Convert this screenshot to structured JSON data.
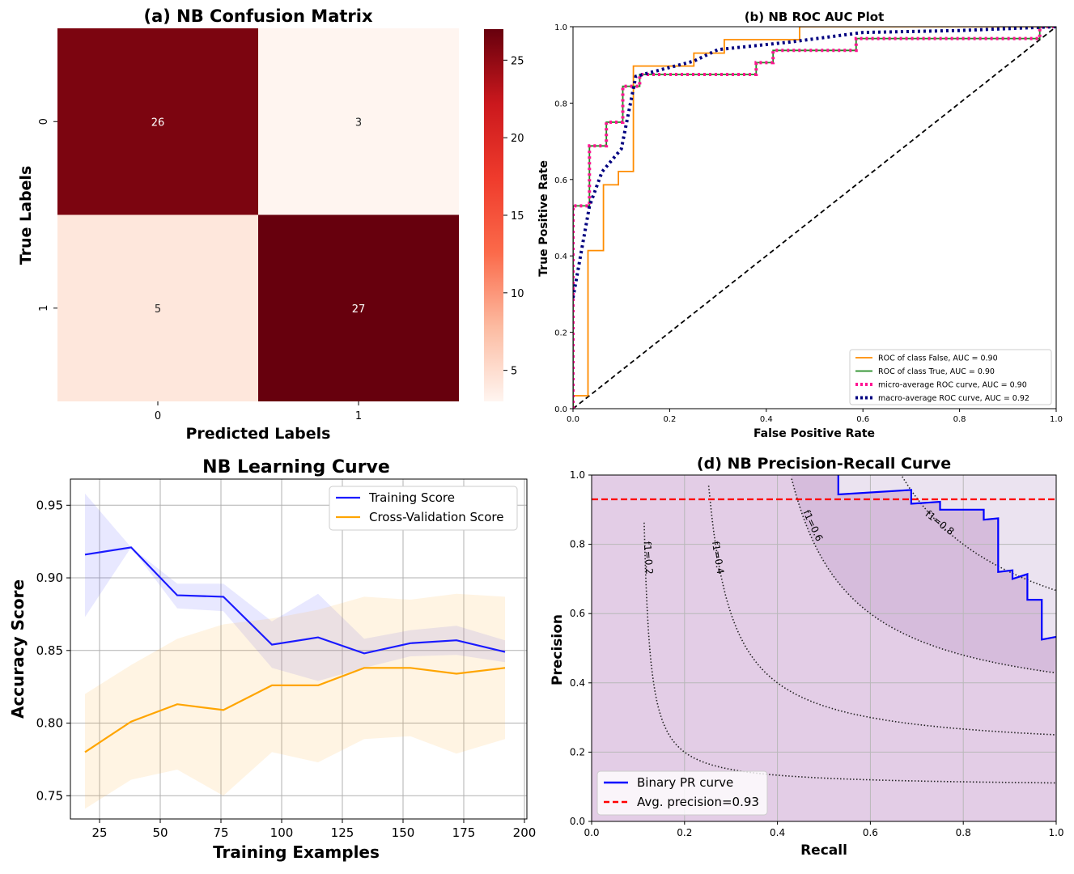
{
  "chart_data": [
    {
      "type": "heatmap",
      "title": "(a) NB Confusion Matrix",
      "xlabel": "Predicted Labels",
      "ylabel": "True Labels",
      "x_ticks": [
        "0",
        "1"
      ],
      "y_ticks": [
        "0",
        "1"
      ],
      "values": [
        [
          26,
          3
        ],
        [
          5,
          27
        ]
      ],
      "colorbar": {
        "ticks": [
          "5",
          "10",
          "15",
          "20",
          "25"
        ],
        "range": [
          3,
          27
        ],
        "colormap": "Reds"
      }
    },
    {
      "type": "line",
      "title": "(b) NB ROC AUC Plot",
      "xlabel": "False Positive Rate",
      "ylabel": "True Positive Rate",
      "xlim": [
        0,
        1
      ],
      "ylim": [
        0,
        1
      ],
      "x_ticks": [
        "0.0",
        "0.2",
        "0.4",
        "0.6",
        "0.8",
        "1.0"
      ],
      "y_ticks": [
        "0.0",
        "0.2",
        "0.4",
        "0.6",
        "0.8",
        "1.0"
      ],
      "legend_position": "lower-right",
      "series": [
        {
          "name": "ROC of class False, AUC = 0.90",
          "color": "#ff8c00",
          "style": "solid",
          "x": [
            0,
            0,
            0.031,
            0.031,
            0.063,
            0.063,
            0.094,
            0.094,
            0.125,
            0.125,
            0.25,
            0.25,
            0.313,
            0.313,
            0.469,
            0.469,
            0.969,
            0.969,
            1
          ],
          "y": [
            0,
            0.034,
            0.034,
            0.414,
            0.414,
            0.586,
            0.586,
            0.621,
            0.621,
            0.897,
            0.897,
            0.931,
            0.931,
            0.966,
            0.966,
            1,
            1,
            1,
            1
          ]
        },
        {
          "name": "ROC of class True, AUC = 0.90",
          "color": "#228b22",
          "style": "solid",
          "x": [
            0,
            0,
            0.034,
            0.034,
            0.069,
            0.069,
            0.103,
            0.103,
            0.138,
            0.138,
            0.379,
            0.379,
            0.414,
            0.414,
            0.586,
            0.586,
            0.966,
            0.966,
            1
          ],
          "y": [
            0,
            0.531,
            0.531,
            0.688,
            0.688,
            0.75,
            0.75,
            0.844,
            0.844,
            0.875,
            0.875,
            0.906,
            0.906,
            0.938,
            0.938,
            0.969,
            0.969,
            1,
            1
          ]
        },
        {
          "name": "micro-average ROC curve, AUC = 0.90",
          "color": "#ff1493",
          "style": "dotted",
          "x": [
            0,
            0,
            0.034,
            0.034,
            0.069,
            0.069,
            0.103,
            0.103,
            0.138,
            0.138,
            0.379,
            0.379,
            0.414,
            0.414,
            0.586,
            0.586,
            0.966,
            0.966,
            1
          ],
          "y": [
            0,
            0.531,
            0.531,
            0.688,
            0.688,
            0.75,
            0.75,
            0.844,
            0.844,
            0.875,
            0.875,
            0.906,
            0.906,
            0.938,
            0.938,
            0.969,
            0.969,
            1,
            1
          ]
        },
        {
          "name": "macro-average ROC curve, AUC = 0.92",
          "color": "#000080",
          "style": "dotted",
          "x": [
            0,
            0.034,
            0.06,
            0.1,
            0.13,
            0.16,
            0.25,
            0.3,
            0.45,
            0.6,
            0.8,
            1
          ],
          "y": [
            0.29,
            0.53,
            0.62,
            0.68,
            0.87,
            0.88,
            0.91,
            0.94,
            0.96,
            0.985,
            0.99,
            1
          ]
        },
        {
          "name": "",
          "color": "#000000",
          "style": "dashed",
          "x": [
            0,
            1
          ],
          "y": [
            0,
            1
          ]
        }
      ]
    },
    {
      "type": "line",
      "title": "NB Learning Curve",
      "xlabel": "Training Examples",
      "ylabel": "Accuracy Score",
      "xlim": [
        13,
        201
      ],
      "ylim": [
        0.734,
        0.968
      ],
      "x_ticks": [
        "25",
        "50",
        "75",
        "100",
        "125",
        "150",
        "175",
        "200"
      ],
      "y_ticks": [
        "0.75",
        "0.80",
        "0.85",
        "0.90",
        "0.95"
      ],
      "grid": true,
      "legend_position": "upper-right",
      "x": [
        19,
        38,
        57,
        76,
        96,
        115,
        134,
        153,
        172,
        192
      ],
      "series": [
        {
          "name": "Training Score",
          "color": "#1a1aff",
          "values": [
            0.916,
            0.921,
            0.888,
            0.887,
            0.854,
            0.859,
            0.848,
            0.855,
            0.857,
            0.849
          ],
          "band_upper": [
            0.958,
            0.921,
            0.896,
            0.896,
            0.87,
            0.889,
            0.858,
            0.864,
            0.867,
            0.857
          ],
          "band_lower": [
            0.873,
            0.921,
            0.879,
            0.877,
            0.838,
            0.829,
            0.838,
            0.846,
            0.847,
            0.842
          ]
        },
        {
          "name": "Cross-Validation Score",
          "color": "#ffa500",
          "values": [
            0.78,
            0.801,
            0.813,
            0.809,
            0.826,
            0.826,
            0.838,
            0.838,
            0.834,
            0.838
          ],
          "band_upper": [
            0.82,
            0.84,
            0.858,
            0.868,
            0.872,
            0.878,
            0.887,
            0.885,
            0.889,
            0.887
          ],
          "band_lower": [
            0.741,
            0.761,
            0.768,
            0.75,
            0.78,
            0.773,
            0.789,
            0.791,
            0.779,
            0.789
          ]
        }
      ]
    },
    {
      "type": "line",
      "title": "(d) NB Precision-Recall Curve",
      "xlabel": "Recall",
      "ylabel": "Precision",
      "xlim": [
        0,
        1
      ],
      "ylim": [
        0,
        1
      ],
      "x_ticks": [
        "0.0",
        "0.2",
        "0.4",
        "0.6",
        "0.8",
        "1.0"
      ],
      "y_ticks": [
        "0.0",
        "0.2",
        "0.4",
        "0.6",
        "0.8",
        "1.0"
      ],
      "grid": true,
      "legend_position": "lower-left",
      "iso_f1_labels": [
        "f1=0.2",
        "f1=0.4",
        "f1=0.6",
        "f1=0.8"
      ],
      "iso_f1_values": [
        0.2,
        0.4,
        0.6,
        0.8
      ],
      "series": [
        {
          "name": "Binary PR curve",
          "color": "#0000ff",
          "x": [
            0.531,
            0.531,
            0.688,
            0.688,
            0.75,
            0.75,
            0.844,
            0.844,
            0.875,
            0.875,
            0.906,
            0.906,
            0.938,
            0.938,
            0.969,
            0.969,
            1
          ],
          "y": [
            1,
            0.944,
            0.957,
            0.917,
            0.923,
            0.9,
            0.9,
            0.871,
            0.875,
            0.72,
            0.725,
            0.7,
            0.714,
            0.64,
            0.64,
            0.525,
            0.533
          ]
        },
        {
          "name": "Avg. precision=0.93",
          "color": "#ff0000",
          "style": "dashed",
          "x": [
            0,
            1
          ],
          "y": [
            0.93,
            0.93
          ]
        }
      ]
    }
  ]
}
